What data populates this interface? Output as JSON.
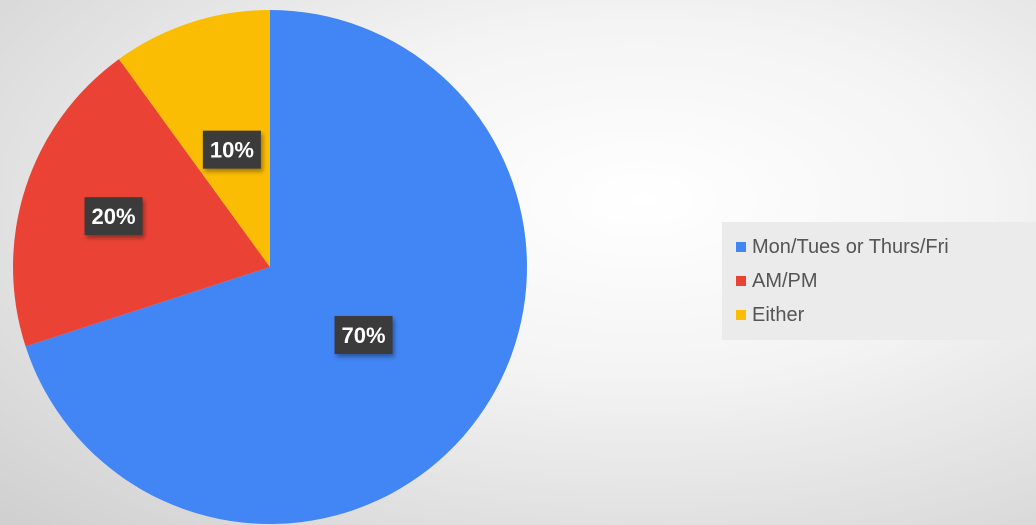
{
  "chart_data": {
    "type": "pie",
    "title": "",
    "series": [
      {
        "categories": [
          "Mon/Tues or Thurs/Fri",
          "AM/PM",
          "Either"
        ],
        "values": [
          70,
          20,
          10
        ],
        "data_labels": [
          "70%",
          "20%",
          "10%"
        ],
        "colors": [
          "#4285f4",
          "#ea4335",
          "#fbbc04"
        ]
      }
    ],
    "start_angle": "12 o'clock",
    "direction": "clockwise",
    "legend_position": "right"
  }
}
